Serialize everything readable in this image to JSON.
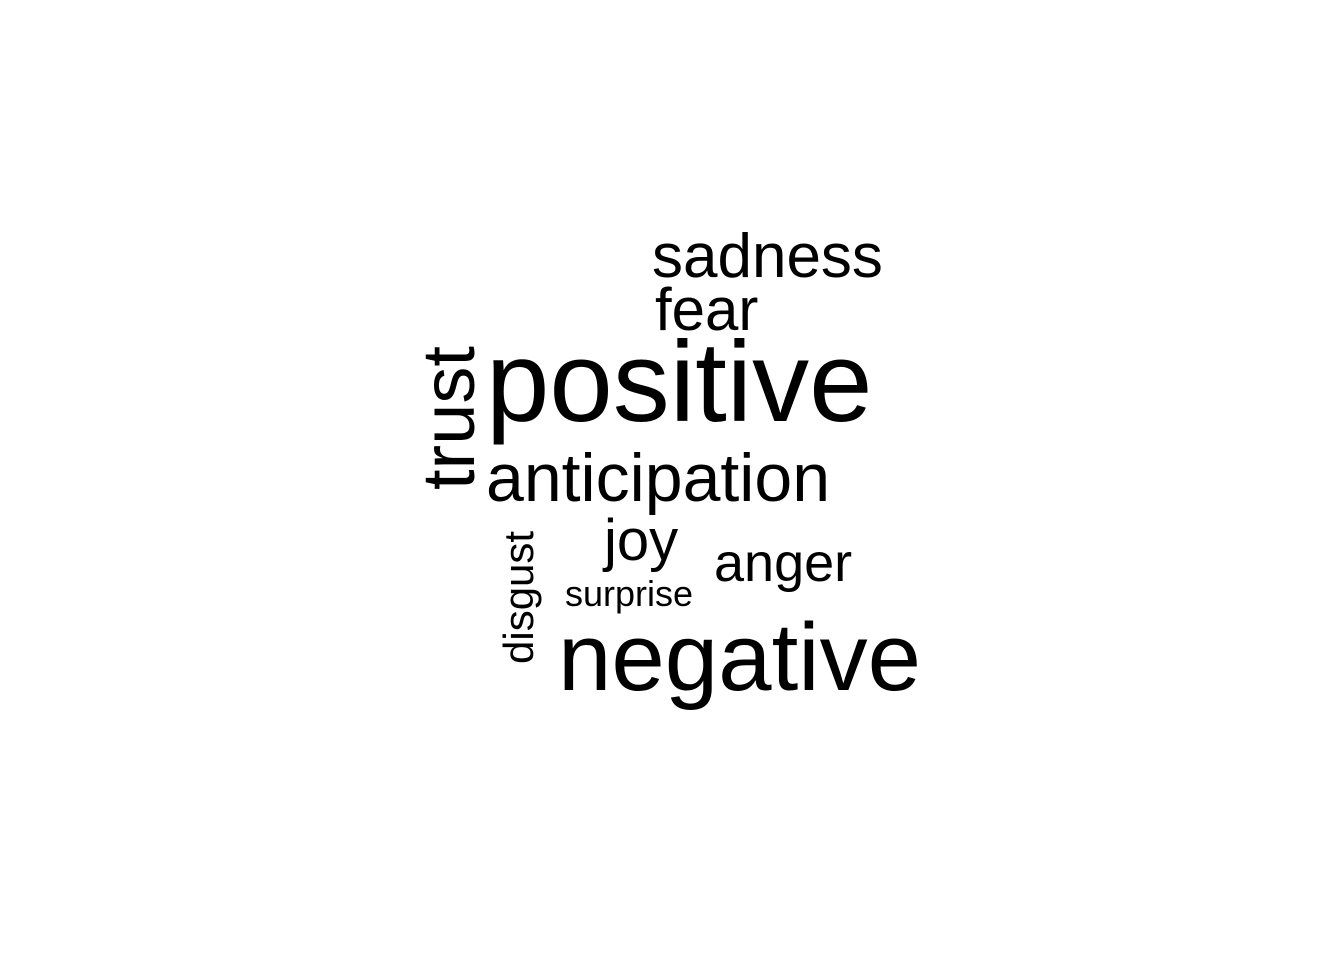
{
  "chart_data": {
    "type": "wordcloud",
    "words": [
      {
        "text": "positive",
        "weight": 100
      },
      {
        "text": "negative",
        "weight": 88
      },
      {
        "text": "trust",
        "weight": 70
      },
      {
        "text": "anticipation",
        "weight": 62
      },
      {
        "text": "sadness",
        "weight": 59
      },
      {
        "text": "fear",
        "weight": 56
      },
      {
        "text": "joy",
        "weight": 53
      },
      {
        "text": "anger",
        "weight": 50
      },
      {
        "text": "disgust",
        "weight": 38
      },
      {
        "text": "surprise",
        "weight": 34
      }
    ],
    "color": "#000000"
  }
}
